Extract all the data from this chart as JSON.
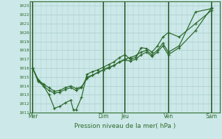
{
  "xlabel": "Pression niveau de la mer( hPa )",
  "background_color": "#cce8e8",
  "plot_bg_color": "#cce8e8",
  "grid_color": "#aacccc",
  "line_color": "#2d6a2d",
  "vline_color": "#2d5a2d",
  "ylim": [
    1011,
    1023.5
  ],
  "xlim": [
    0,
    35
  ],
  "yticks": [
    1011,
    1012,
    1013,
    1014,
    1015,
    1016,
    1017,
    1018,
    1019,
    1020,
    1021,
    1022,
    1023
  ],
  "day_labels": [
    "Mer",
    "Dim",
    "Jeu",
    "Ven",
    "Sam"
  ],
  "day_x": [
    0.5,
    13.5,
    17.5,
    25.5,
    33.5
  ],
  "vline_x": [
    0.5,
    13.5,
    17.5,
    25.5,
    33.5
  ],
  "series1_x": [
    0.5,
    1.5,
    2.5,
    3.5,
    4.5,
    5.5,
    6.5,
    7.5,
    8.0,
    8.5,
    9.5,
    10.5,
    11.5,
    12.5,
    13.5,
    14.5,
    15.5,
    16.5,
    17.5,
    18.5,
    19.5,
    20.5,
    21.5,
    22.5,
    23.5,
    24.5,
    25.5,
    27.5,
    30.5,
    33.5
  ],
  "series1_y": [
    1016.0,
    1014.7,
    1014.0,
    1013.0,
    1011.5,
    1011.7,
    1012.1,
    1012.4,
    1011.3,
    1011.3,
    1012.7,
    1015.3,
    1015.6,
    1015.8,
    1016.1,
    1016.4,
    1016.7,
    1017.2,
    1017.5,
    1017.0,
    1017.2,
    1018.3,
    1018.2,
    1017.8,
    1018.5,
    1019.5,
    1020.0,
    1019.5,
    1021.0,
    1022.5
  ],
  "series2_x": [
    0.5,
    1.5,
    2.5,
    3.5,
    4.5,
    5.5,
    6.5,
    7.5,
    8.5,
    9.5,
    10.5,
    11.5,
    12.5,
    13.5,
    14.5,
    15.5,
    16.5,
    17.5,
    18.5,
    19.5,
    20.5,
    21.5,
    22.5,
    23.5,
    24.5,
    25.5,
    27.5,
    30.5,
    33.5
  ],
  "series2_y": [
    1016.0,
    1014.7,
    1014.2,
    1013.8,
    1013.4,
    1013.5,
    1013.8,
    1014.0,
    1013.7,
    1013.9,
    1014.8,
    1015.2,
    1015.5,
    1015.8,
    1016.1,
    1016.3,
    1016.7,
    1017.0,
    1017.2,
    1017.4,
    1017.8,
    1018.0,
    1017.5,
    1018.0,
    1018.8,
    1017.8,
    1018.5,
    1022.3,
    1022.7
  ],
  "series3_x": [
    0.5,
    1.5,
    2.5,
    3.5,
    4.5,
    5.5,
    6.5,
    7.5,
    8.5,
    9.5,
    10.5,
    11.5,
    12.5,
    13.5,
    14.5,
    15.5,
    16.5,
    17.5,
    18.5,
    19.5,
    20.5,
    21.5,
    22.5,
    23.5,
    24.5,
    25.5,
    27.5,
    30.5,
    33.5
  ],
  "series3_y": [
    1016.0,
    1014.5,
    1014.0,
    1013.5,
    1013.2,
    1013.3,
    1013.6,
    1013.8,
    1013.5,
    1013.8,
    1015.0,
    1015.2,
    1015.5,
    1015.8,
    1016.0,
    1016.3,
    1016.7,
    1016.9,
    1016.8,
    1017.0,
    1017.5,
    1017.8,
    1017.3,
    1017.8,
    1018.5,
    1017.5,
    1018.3,
    1020.2,
    1022.8
  ]
}
